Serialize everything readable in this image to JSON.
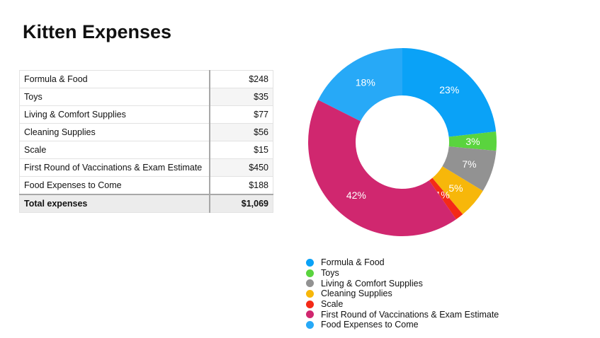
{
  "title": "Kitten Expenses",
  "table": {
    "rows": [
      {
        "label": "Formula & Food",
        "value": "$248"
      },
      {
        "label": "Toys",
        "value": "$35"
      },
      {
        "label": "Living & Comfort Supplies",
        "value": "$77"
      },
      {
        "label": "Cleaning Supplies",
        "value": "$56"
      },
      {
        "label": "Scale",
        "value": "$15"
      },
      {
        "label": "First Round of Vaccinations & Exam Estimate",
        "value": "$450"
      },
      {
        "label": "Food Expenses to Come",
        "value": "$188"
      }
    ],
    "total": {
      "label": "Total expenses",
      "value": "$1,069"
    }
  },
  "chart_data": {
    "type": "pie",
    "donut": true,
    "categories": [
      "Formula & Food",
      "Toys",
      "Living & Comfort Supplies",
      "Cleaning Supplies",
      "Scale",
      "First Round of Vaccinations & Exam Estimate",
      "Food Expenses to Come"
    ],
    "values": [
      248,
      35,
      77,
      56,
      15,
      450,
      188
    ],
    "labels": [
      "23%",
      "3%",
      "7%",
      "5%",
      "1%",
      "42%",
      "18%"
    ],
    "colors": [
      "#0aa2f7",
      "#5ad43e",
      "#929292",
      "#f7b70a",
      "#f42a17",
      "#d0276f",
      "#27a9f7"
    ],
    "legend": "bottom"
  }
}
